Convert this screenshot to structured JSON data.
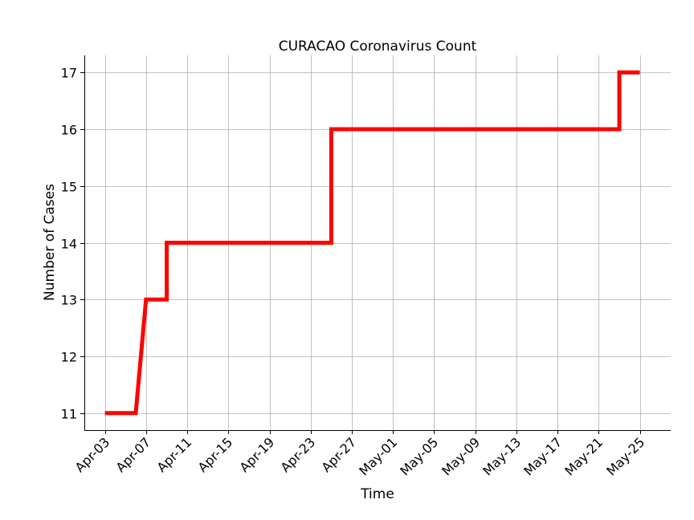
{
  "chart_data": {
    "type": "line",
    "title": "CURACAO Coronavirus Count",
    "xlabel": "Time",
    "ylabel": "Number of Cases",
    "x_ticks": [
      "Apr-03",
      "Apr-07",
      "Apr-11",
      "Apr-15",
      "Apr-19",
      "Apr-23",
      "Apr-27",
      "May-01",
      "May-05",
      "May-09",
      "May-13",
      "May-17",
      "May-21",
      "May-25"
    ],
    "y_ticks": [
      11,
      12,
      13,
      14,
      15,
      16,
      17
    ],
    "xlim": [
      "2020-04-01",
      "2020-05-28"
    ],
    "ylim": [
      10.7,
      17.3
    ],
    "grid": true,
    "series": [
      {
        "color": "#ff0000",
        "points": [
          {
            "x": "2020-04-03",
            "y": 11
          },
          {
            "x": "2020-04-06",
            "y": 11
          },
          {
            "x": "2020-04-07",
            "y": 13
          },
          {
            "x": "2020-04-09",
            "y": 13
          },
          {
            "x": "2020-04-09",
            "y": 14
          },
          {
            "x": "2020-04-25",
            "y": 14
          },
          {
            "x": "2020-04-25",
            "y": 16
          },
          {
            "x": "2020-05-23",
            "y": 16
          },
          {
            "x": "2020-05-23",
            "y": 17
          },
          {
            "x": "2020-05-25",
            "y": 17
          }
        ]
      }
    ]
  }
}
